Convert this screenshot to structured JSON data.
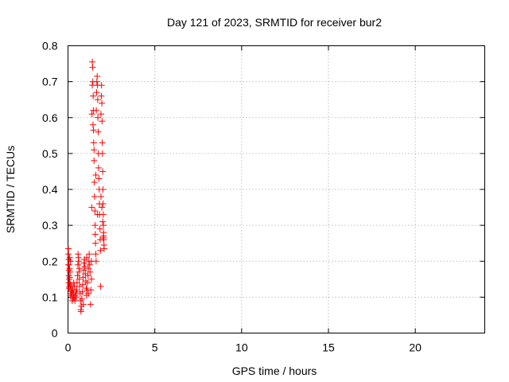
{
  "chart_data": {
    "type": "scatter",
    "title": "Day 121 of 2023, SRMTID for receiver bur2",
    "xlabel": "GPS time / hours",
    "ylabel": "SRMTID / TECUs",
    "xlim": [
      0,
      24
    ],
    "ylim": [
      0,
      0.8
    ],
    "xticks": [
      0,
      5,
      10,
      15,
      20
    ],
    "yticks": [
      0,
      0.1,
      0.2,
      0.3,
      0.4,
      0.5,
      0.6,
      0.7,
      0.8
    ],
    "xtick_labels": [
      "0",
      "5",
      "10",
      "15",
      "20"
    ],
    "ytick_labels": [
      "0",
      "0.1",
      "0.2",
      "0.3",
      "0.4",
      "0.5",
      "0.6",
      "0.7",
      "0.8"
    ],
    "grid": true,
    "marker": "+",
    "color": "#ff0000",
    "series": [
      {
        "name": "bur2",
        "points": [
          [
            0.02,
            0.235
          ],
          [
            0.03,
            0.22
          ],
          [
            0.04,
            0.205
          ],
          [
            0.05,
            0.19
          ],
          [
            0.06,
            0.175
          ],
          [
            0.05,
            0.16
          ],
          [
            0.07,
            0.15
          ],
          [
            0.04,
            0.14
          ],
          [
            0.08,
            0.13
          ],
          [
            0.06,
            0.125
          ],
          [
            0.1,
            0.21
          ],
          [
            0.09,
            0.18
          ],
          [
            0.12,
            0.17
          ],
          [
            0.1,
            0.155
          ],
          [
            0.13,
            0.135
          ],
          [
            0.15,
            0.12
          ],
          [
            0.14,
            0.2
          ],
          [
            0.18,
            0.11
          ],
          [
            0.2,
            0.13
          ],
          [
            0.22,
            0.115
          ],
          [
            0.25,
            0.105
          ],
          [
            0.27,
            0.12
          ],
          [
            0.3,
            0.095
          ],
          [
            0.32,
            0.11
          ],
          [
            0.35,
            0.1
          ],
          [
            0.37,
            0.13
          ],
          [
            0.4,
            0.09
          ],
          [
            0.42,
            0.105
          ],
          [
            0.45,
            0.115
          ],
          [
            0.48,
            0.1
          ],
          [
            0.5,
            0.12
          ],
          [
            0.52,
            0.14
          ],
          [
            0.55,
            0.16
          ],
          [
            0.57,
            0.19
          ],
          [
            0.6,
            0.21
          ],
          [
            0.62,
            0.2
          ],
          [
            0.63,
            0.17
          ],
          [
            0.65,
            0.15
          ],
          [
            0.67,
            0.13
          ],
          [
            0.7,
            0.11
          ],
          [
            0.72,
            0.09
          ],
          [
            0.74,
            0.065
          ],
          [
            0.75,
            0.06
          ],
          [
            0.77,
            0.075
          ],
          [
            0.8,
            0.095
          ],
          [
            0.82,
            0.115
          ],
          [
            0.85,
            0.135
          ],
          [
            0.87,
            0.155
          ],
          [
            0.9,
            0.175
          ],
          [
            0.92,
            0.195
          ],
          [
            0.95,
            0.205
          ],
          [
            0.97,
            0.185
          ],
          [
            1.0,
            0.165
          ],
          [
            1.02,
            0.145
          ],
          [
            1.05,
            0.125
          ],
          [
            1.07,
            0.105
          ],
          [
            1.1,
            0.12
          ],
          [
            1.12,
            0.14
          ],
          [
            1.15,
            0.16
          ],
          [
            1.17,
            0.18
          ],
          [
            1.2,
            0.2
          ],
          [
            1.22,
            0.22
          ],
          [
            1.25,
            0.19
          ],
          [
            1.27,
            0.17
          ],
          [
            1.3,
            0.08
          ],
          [
            1.32,
            0.12
          ],
          [
            1.35,
            0.15
          ],
          [
            1.37,
            0.35
          ],
          [
            1.38,
            0.61
          ],
          [
            1.4,
            0.69
          ],
          [
            1.4,
            0.755
          ],
          [
            1.42,
            0.74
          ],
          [
            1.43,
            0.7
          ],
          [
            1.45,
            0.66
          ],
          [
            1.46,
            0.62
          ],
          [
            1.47,
            0.565
          ],
          [
            1.48,
            0.53
          ],
          [
            1.5,
            0.48
          ],
          [
            1.52,
            0.42
          ],
          [
            1.53,
            0.38
          ],
          [
            1.55,
            0.34
          ],
          [
            1.56,
            0.3
          ],
          [
            1.57,
            0.275
          ],
          [
            1.58,
            0.25
          ],
          [
            1.6,
            0.22
          ],
          [
            1.62,
            0.2
          ],
          [
            1.63,
            0.62
          ],
          [
            1.65,
            0.67
          ],
          [
            1.66,
            0.7
          ],
          [
            1.68,
            0.715
          ],
          [
            1.7,
            0.69
          ],
          [
            1.71,
            0.65
          ],
          [
            1.72,
            0.6
          ],
          [
            1.74,
            0.56
          ],
          [
            1.75,
            0.5
          ],
          [
            1.76,
            0.46
          ],
          [
            1.78,
            0.43
          ],
          [
            1.8,
            0.4
          ],
          [
            1.81,
            0.36
          ],
          [
            1.82,
            0.33
          ],
          [
            1.84,
            0.29
          ],
          [
            1.85,
            0.26
          ],
          [
            1.87,
            0.23
          ],
          [
            1.88,
            0.13
          ],
          [
            1.9,
            0.61
          ],
          [
            1.92,
            0.66
          ],
          [
            1.93,
            0.69
          ],
          [
            1.95,
            0.64
          ],
          [
            1.96,
            0.59
          ],
          [
            1.97,
            0.53
          ],
          [
            1.98,
            0.5
          ],
          [
            2.0,
            0.45
          ],
          [
            2.01,
            0.4
          ],
          [
            2.02,
            0.36
          ],
          [
            2.03,
            0.33
          ],
          [
            2.04,
            0.3
          ],
          [
            2.05,
            0.28
          ],
          [
            2.06,
            0.26
          ],
          [
            2.07,
            0.245
          ],
          [
            2.08,
            0.235
          ],
          [
            2.05,
            0.27
          ],
          [
            2.0,
            0.31
          ],
          [
            1.95,
            0.35
          ],
          [
            2.03,
            0.265
          ],
          [
            1.9,
            0.38
          ],
          [
            1.7,
            0.33
          ],
          [
            1.6,
            0.44
          ],
          [
            1.5,
            0.51
          ],
          [
            1.44,
            0.58
          ],
          [
            1.35,
            0.2
          ],
          [
            0.58,
            0.22
          ],
          [
            0.66,
            0.18
          ],
          [
            0.88,
            0.08
          ],
          [
            1.08,
            0.21
          ],
          [
            1.18,
            0.11
          ],
          [
            0.33,
            0.14
          ],
          [
            0.24,
            0.09
          ],
          [
            0.15,
            0.105
          ],
          [
            0.11,
            0.14
          ],
          [
            0.03,
            0.19
          ]
        ]
      }
    ]
  }
}
